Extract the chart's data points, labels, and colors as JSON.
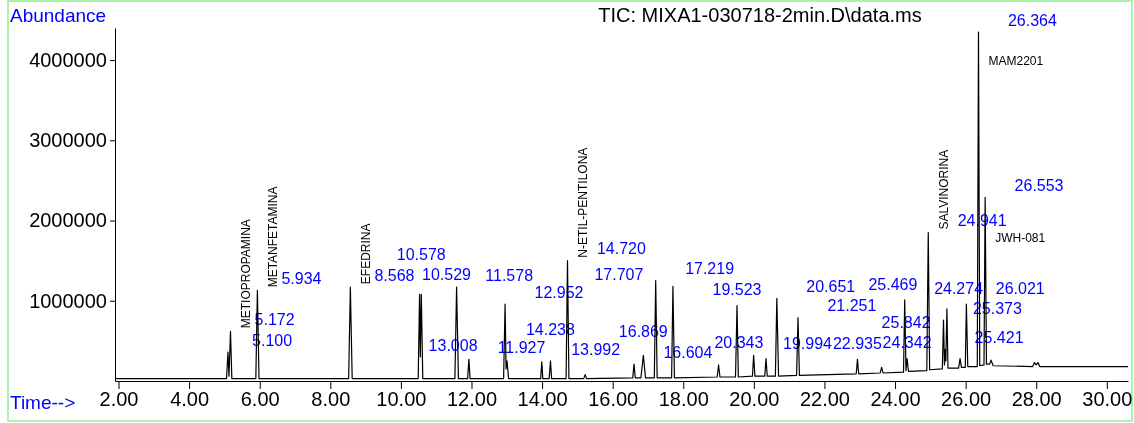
{
  "chart_data": {
    "type": "line",
    "title": "TIC: MIXA1-030718-2min.D\\data.ms",
    "xlabel": "Time-->",
    "ylabel": "Abundance",
    "xlim": [
      1.9,
      30.6
    ],
    "ylim": [
      0,
      4400000
    ],
    "xticks": [
      {
        "value": 2,
        "label": "2.00"
      },
      {
        "value": 4,
        "label": "4.00"
      },
      {
        "value": 6,
        "label": "6.00"
      },
      {
        "value": 8,
        "label": "8.00"
      },
      {
        "value": 10,
        "label": "10.00"
      },
      {
        "value": 12,
        "label": "12.00"
      },
      {
        "value": 14,
        "label": "14.00"
      },
      {
        "value": 16,
        "label": "16.00"
      },
      {
        "value": 18,
        "label": "18.00"
      },
      {
        "value": 20,
        "label": "20.00"
      },
      {
        "value": 22,
        "label": "22.00"
      },
      {
        "value": 24,
        "label": "24.00"
      },
      {
        "value": 26,
        "label": "26.00"
      },
      {
        "value": 28,
        "label": "28.00"
      },
      {
        "value": 30,
        "label": "30.00"
      }
    ],
    "yticks": [
      1000000,
      2000000,
      3000000,
      4000000
    ],
    "series": [
      {
        "color": "#000000",
        "x": [
          1.9,
          5.06,
          5.1,
          5.13,
          5.172,
          5.21,
          5.89,
          5.934,
          5.98,
          8.52,
          8.568,
          8.62,
          10.49,
          10.529,
          10.55,
          10.578,
          10.62,
          11.53,
          11.578,
          11.63,
          11.89,
          11.927,
          11.96,
          12.91,
          12.952,
          12.98,
          13.008,
          13.05,
          13.96,
          13.992,
          14.02,
          14.2,
          14.238,
          14.27,
          14.68,
          14.72,
          14.76,
          15.18,
          15.22,
          15.26,
          16.57,
          16.604,
          16.64,
          16.8,
          16.869,
          16.93,
          17.18,
          17.219,
          17.26,
          17.67,
          17.707,
          17.75,
          18.96,
          19.0,
          19.04,
          19.48,
          19.523,
          19.56,
          19.96,
          19.994,
          20.03,
          20.31,
          20.343,
          20.38,
          20.61,
          20.651,
          20.7,
          21.21,
          21.251,
          21.29,
          22.9,
          22.935,
          22.97,
          23.58,
          23.62,
          23.66,
          24.24,
          24.274,
          24.31,
          24.342,
          24.38,
          24.9,
          24.941,
          24.98,
          25.34,
          25.373,
          25.4,
          25.421,
          25.44,
          25.469,
          25.5,
          25.8,
          25.842,
          25.88,
          25.99,
          26.021,
          26.06,
          26.33,
          26.364,
          26.4,
          26.52,
          26.553,
          26.59,
          26.68,
          26.72,
          26.78,
          27.9,
          27.95,
          28.0,
          28.05,
          28.1,
          30.6
        ],
        "values": [
          30000,
          30000,
          360000,
          60000,
          620000,
          30000,
          30000,
          1130000,
          30000,
          30000,
          1170000,
          30000,
          30000,
          1080000,
          300000,
          1080000,
          30000,
          30000,
          1170000,
          30000,
          30000,
          270000,
          30000,
          30000,
          960000,
          150000,
          250000,
          30000,
          30000,
          240000,
          30000,
          30000,
          250000,
          30000,
          30000,
          1500000,
          30000,
          30000,
          80000,
          30000,
          40000,
          210000,
          40000,
          40000,
          320000,
          40000,
          40000,
          1250000,
          40000,
          40000,
          1180000,
          40000,
          50000,
          200000,
          50000,
          50000,
          940000,
          50000,
          60000,
          320000,
          60000,
          60000,
          280000,
          60000,
          60000,
          1030000,
          60000,
          70000,
          790000,
          70000,
          90000,
          270000,
          90000,
          100000,
          170000,
          100000,
          110000,
          1010000,
          130000,
          280000,
          120000,
          130000,
          1850000,
          140000,
          150000,
          760000,
          200000,
          390000,
          250000,
          900000,
          160000,
          160000,
          280000,
          170000,
          170000,
          960000,
          180000,
          180000,
          4350000,
          190000,
          200000,
          2290000,
          210000,
          210000,
          260000,
          190000,
          180000,
          230000,
          200000,
          230000,
          180000,
          180000
        ]
      }
    ],
    "annotations": [
      {
        "text": "5.100",
        "x": 5.1,
        "y": 360000
      },
      {
        "text": "5.172",
        "x": 5.172,
        "y": 620000
      },
      {
        "text": "5.934",
        "x": 5.934,
        "y": 1130000
      },
      {
        "text": "8.568",
        "x": 8.568,
        "y": 1170000
      },
      {
        "text": "10.529",
        "x": 10.529,
        "y": 1080000
      },
      {
        "text": "10.578",
        "x": 10.578,
        "y": 1080000
      },
      {
        "text": "11.578",
        "x": 11.578,
        "y": 1170000
      },
      {
        "text": "11.927",
        "x": 11.927,
        "y": 270000
      },
      {
        "text": "12.952",
        "x": 12.952,
        "y": 960000
      },
      {
        "text": "13.008",
        "x": 13.008,
        "y": 250000
      },
      {
        "text": "13.992",
        "x": 13.992,
        "y": 240000
      },
      {
        "text": "14.238",
        "x": 14.238,
        "y": 250000
      },
      {
        "text": "14.720",
        "x": 14.72,
        "y": 1500000
      },
      {
        "text": "16.604",
        "x": 16.604,
        "y": 210000
      },
      {
        "text": "16.869",
        "x": 16.869,
        "y": 320000
      },
      {
        "text": "17.219",
        "x": 17.219,
        "y": 1250000
      },
      {
        "text": "17.707",
        "x": 17.707,
        "y": 1180000
      },
      {
        "text": "19.523",
        "x": 19.523,
        "y": 940000
      },
      {
        "text": "19.994",
        "x": 19.994,
        "y": 320000
      },
      {
        "text": "20.343",
        "x": 20.343,
        "y": 280000
      },
      {
        "text": "20.651",
        "x": 20.651,
        "y": 1030000
      },
      {
        "text": "21.251",
        "x": 21.251,
        "y": 790000
      },
      {
        "text": "22.935",
        "x": 22.935,
        "y": 270000
      },
      {
        "text": "24.274",
        "x": 24.274,
        "y": 1010000
      },
      {
        "text": "24.342",
        "x": 24.342,
        "y": 280000
      },
      {
        "text": "24.941",
        "x": 24.941,
        "y": 1850000
      },
      {
        "text": "25.373",
        "x": 25.373,
        "y": 760000
      },
      {
        "text": "25.421",
        "x": 25.421,
        "y": 390000
      },
      {
        "text": "25.469",
        "x": 25.469,
        "y": 900000
      },
      {
        "text": "25.842",
        "x": 25.842,
        "y": 280000
      },
      {
        "text": "26.021",
        "x": 26.021,
        "y": 960000
      },
      {
        "text": "26.364",
        "x": 26.364,
        "y": 4350000
      },
      {
        "text": "26.553",
        "x": 26.553,
        "y": 2290000
      },
      {
        "text": "METIOPROPAMINA",
        "x": 5.172,
        "y": 620000
      },
      {
        "text": "METANFETAMINA",
        "x": 5.934,
        "y": 1130000
      },
      {
        "text": "EFEDRINA",
        "x": 8.568,
        "y": 1170000
      },
      {
        "text": "N-ETIL-PENTILONA",
        "x": 14.72,
        "y": 1500000
      },
      {
        "text": "SALVINORINA",
        "x": 24.941,
        "y": 1850000
      },
      {
        "text": "MAM2201",
        "x": 26.364,
        "y": 4350000
      },
      {
        "text": "JWH-081",
        "x": 26.553,
        "y": 2290000
      }
    ]
  }
}
